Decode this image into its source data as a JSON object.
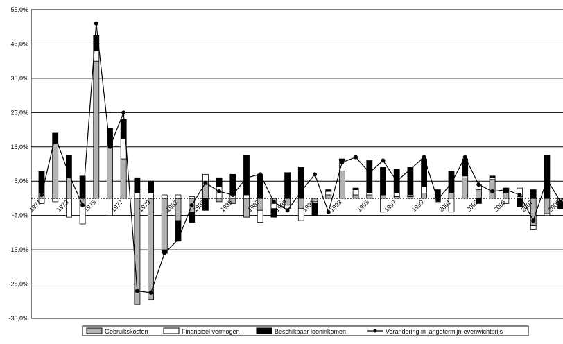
{
  "chart_data": {
    "type": "bar",
    "stacked": true,
    "xlabel": "",
    "ylabel": "",
    "ylim": [
      -35,
      55
    ],
    "y_tick_step": 10,
    "y_tick_labels": [
      "55,0%",
      "45,0%",
      "35,0%",
      "25,0%",
      "15,0%",
      "5,0%",
      "-5,0%",
      "-15,0%",
      "-25,0%",
      "-35,0%"
    ],
    "grid": true,
    "legend_position": "bottom",
    "categories": [
      "1971",
      "1972",
      "1973",
      "1974",
      "1975",
      "1976",
      "1977",
      "1978",
      "1979",
      "1980",
      "1981",
      "1982",
      "1983",
      "1984",
      "1985",
      "1986",
      "1987",
      "1988",
      "1989",
      "1990",
      "1991",
      "1992",
      "1993",
      "1994",
      "1995",
      "1996",
      "1997",
      "1998",
      "1999",
      "2000",
      "2001",
      "2002",
      "2003",
      "2004",
      "2005",
      "2006",
      "2007",
      "2008",
      "2009",
      "2010"
    ],
    "x_tick_labels": [
      "1971",
      "1973",
      "1975",
      "1977",
      "1979",
      "1981",
      "1983",
      "1985",
      "1987",
      "1989",
      "1991",
      "1993",
      "1995",
      "1997",
      "1999",
      "2001",
      "2003",
      "2005",
      "2007",
      "2009"
    ],
    "series": [
      {
        "name": "Gebruikskosten",
        "kind": "bar",
        "color": "#b3b3b3",
        "values": [
          1.5,
          16.0,
          6.0,
          -2.0,
          40.0,
          15.5,
          11.5,
          -31.0,
          -29.5,
          -15.0,
          -6.5,
          -4.0,
          5.0,
          -1.0,
          -1.5,
          -5.5,
          -3.5,
          -1.5,
          -2.0,
          -3.0,
          -1.0,
          1.0,
          8.0,
          1.0,
          1.0,
          1.0,
          0.5,
          0.5,
          1.5,
          -0.5,
          1.5,
          6.0,
          2.5,
          5.5,
          1.5,
          0.5,
          -8.0,
          -4.5,
          -0.5,
          0.5
        ]
      },
      {
        "name": "Financieel vermogen",
        "kind": "bar",
        "color": "#ffffff",
        "values": [
          -1.5,
          -1.0,
          -5.5,
          -5.5,
          3.0,
          -5.0,
          6.0,
          1.5,
          1.5,
          1.0,
          1.0,
          0.5,
          2.0,
          3.5,
          1.0,
          1.0,
          -3.5,
          -1.5,
          -1.0,
          -3.5,
          -0.5,
          1.0,
          3.0,
          1.5,
          0.5,
          -4.0,
          1.0,
          0.5,
          2.0,
          -0.5,
          -4.0,
          0.5,
          1.5,
          0.5,
          -1.5,
          2.5,
          -1.0,
          -0.5,
          -0.5,
          0.0
        ]
      },
      {
        "name": "Beschikbaar looninkomen",
        "kind": "bar",
        "color": "#000000",
        "values": [
          6.5,
          3.0,
          6.5,
          6.5,
          4.5,
          5.0,
          5.5,
          4.5,
          3.5,
          -1.0,
          -6.0,
          -3.0,
          -3.5,
          2.5,
          6.0,
          11.5,
          7.0,
          -2.5,
          7.5,
          9.0,
          -3.5,
          0.5,
          0.5,
          0.5,
          9.5,
          8.0,
          7.0,
          8.0,
          8.0,
          2.5,
          6.5,
          5.0,
          -1.5,
          0.5,
          1.5,
          -2.5,
          2.5,
          12.5,
          -2.0,
          4.5
        ]
      },
      {
        "name": "Verandering in langetermijn-evenwichtprijs",
        "kind": "line",
        "color": "#000000",
        "values": [
          1.0,
          18.0,
          7.0,
          -2.0,
          51.0,
          15.0,
          25.0,
          -27.0,
          -27.5,
          -16.0,
          -12.0,
          -2.0,
          4.5,
          2.0,
          1.0,
          6.0,
          7.0,
          -1.0,
          -3.5,
          2.0,
          7.0,
          -4.0,
          10.5,
          12.0,
          7.5,
          11.0,
          5.0,
          8.5,
          12.0,
          -0.5,
          4.5,
          12.0,
          4.0,
          2.0,
          2.5,
          1.0,
          -6.5,
          5.5,
          -1.0,
          5.0
        ]
      }
    ]
  }
}
